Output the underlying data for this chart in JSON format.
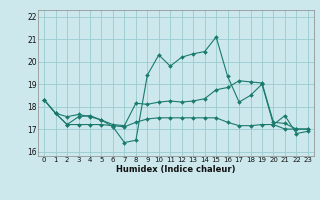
{
  "xlabel": "Humidex (Indice chaleur)",
  "bg_color": "#cce8ec",
  "grid_color": "#99ccd0",
  "line_color": "#1a7a6e",
  "xlim": [
    -0.5,
    23.5
  ],
  "ylim": [
    15.8,
    22.3
  ],
  "yticks": [
    16,
    17,
    18,
    19,
    20,
    21,
    22
  ],
  "xticks": [
    0,
    1,
    2,
    3,
    4,
    5,
    6,
    7,
    8,
    9,
    10,
    11,
    12,
    13,
    14,
    15,
    16,
    17,
    18,
    19,
    20,
    21,
    22,
    23
  ],
  "series": [
    [
      18.3,
      17.7,
      17.2,
      17.55,
      17.6,
      17.4,
      17.1,
      16.4,
      16.5,
      19.4,
      20.3,
      19.8,
      20.2,
      20.35,
      20.45,
      21.1,
      19.35,
      18.2,
      18.5,
      19.0,
      17.2,
      17.6,
      16.8,
      16.9
    ],
    [
      18.3,
      17.7,
      17.2,
      17.2,
      17.2,
      17.2,
      17.15,
      17.1,
      17.3,
      17.45,
      17.5,
      17.5,
      17.5,
      17.5,
      17.5,
      17.5,
      17.3,
      17.15,
      17.15,
      17.2,
      17.2,
      17.0,
      17.0,
      17.0
    ],
    [
      18.3,
      17.7,
      17.55,
      17.65,
      17.55,
      17.4,
      17.2,
      17.15,
      18.15,
      18.1,
      18.2,
      18.25,
      18.2,
      18.25,
      18.35,
      18.75,
      18.85,
      19.15,
      19.1,
      19.05,
      17.3,
      17.25,
      17.0,
      17.0
    ]
  ]
}
